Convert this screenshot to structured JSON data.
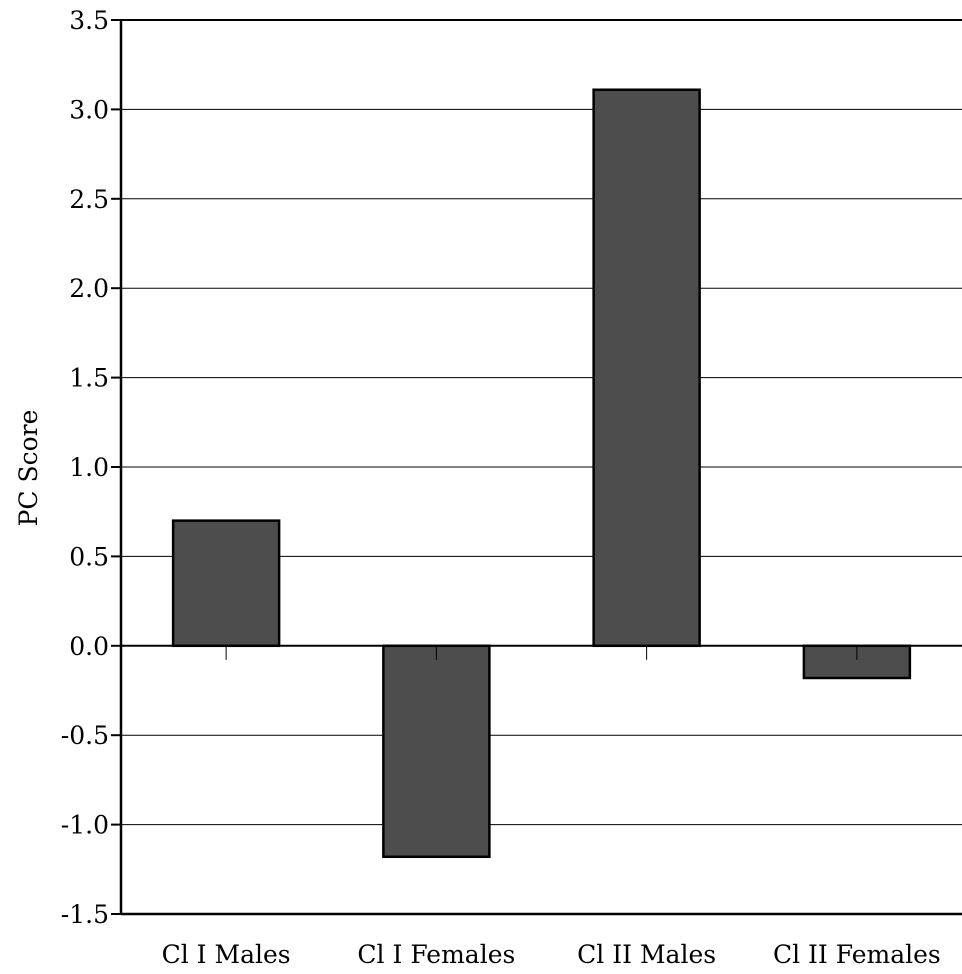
{
  "chart_data": {
    "type": "bar",
    "categories": [
      "Cl I Males",
      "Cl I Females",
      "Cl II Males",
      "Cl II Females"
    ],
    "values": [
      0.7,
      -1.18,
      3.11,
      -0.18
    ],
    "title": "",
    "xlabel": "",
    "ylabel": "PC Score",
    "ylim": [
      -1.5,
      3.5
    ],
    "yticks": [
      "-1.5",
      "-1.0",
      "-0.5",
      "0.0",
      "0.5",
      "1.0",
      "1.5",
      "2.0",
      "2.5",
      "3.0",
      "3.5"
    ],
    "grid": true,
    "bar_color": "#4d4d4d"
  }
}
